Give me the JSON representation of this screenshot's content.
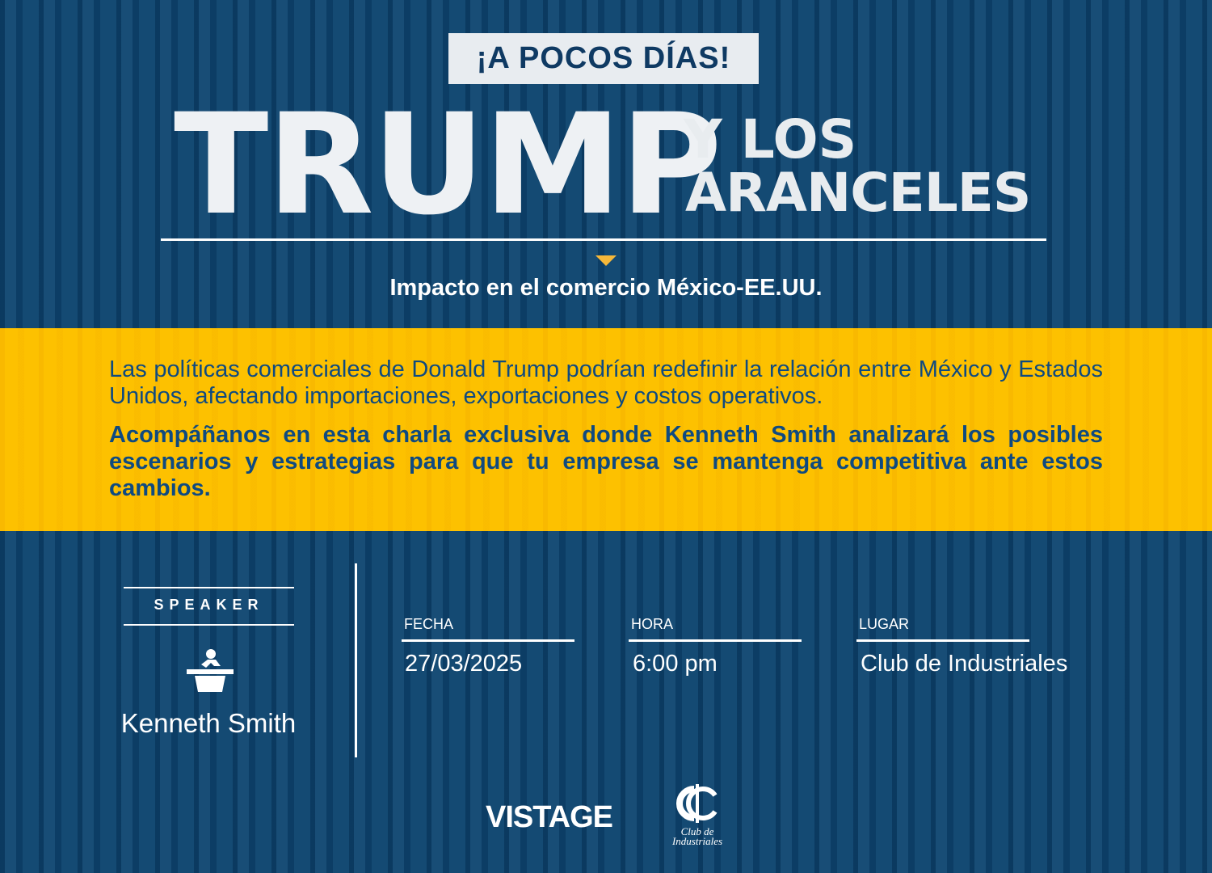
{
  "header": {
    "badge": "¡A POCOS DÍAS!",
    "title_main": "TRUMP",
    "title_line1": "Y LOS",
    "title_line2": "ARANCELES",
    "subtitle": "Impacto en el comercio México-EE.UU."
  },
  "description": {
    "paragraph1": "Las políticas comerciales de Donald Trump podrían redefinir la relación entre México y Estados Unidos, afectando importaciones, exportaciones y costos operativos.",
    "paragraph2": "Acompáñanos en esta charla exclusiva donde Kenneth Smith analizará los posibles escenarios y estrategias para que tu empresa se mantenga competitiva ante estos cambios."
  },
  "speaker": {
    "label": "SPEAKER",
    "name": "Kenneth Smith",
    "icon": "podium-icon"
  },
  "details": [
    {
      "label": "FECHA",
      "value": "27/03/2025"
    },
    {
      "label": "HORA",
      "value": "6:00 pm"
    },
    {
      "label": "LUGAR",
      "value": "Club de Industriales"
    }
  ],
  "logos": {
    "vistage": "VISTAGE",
    "club": "Club de Industriales",
    "club_line1": "Club de",
    "club_line2": "Industriales"
  },
  "colors": {
    "background": "#0f4670",
    "band": "#fdc100",
    "accent": "#f6b83a",
    "text_blue": "#0f4a80"
  }
}
